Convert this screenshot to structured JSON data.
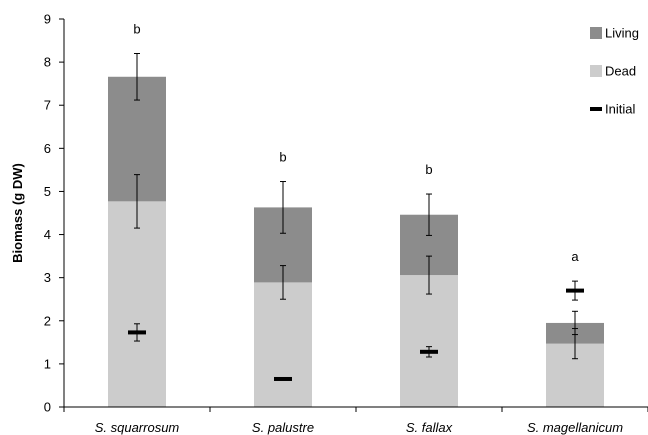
{
  "chart_data": {
    "type": "bar",
    "stacked": true,
    "ylabel": "Biomass (g DW)",
    "ylim": [
      0,
      9
    ],
    "yticks": [
      0,
      1,
      2,
      3,
      4,
      5,
      6,
      7,
      8,
      9
    ],
    "categories": [
      "S. squarrosum",
      "S. palustre",
      "S. fallax",
      "S. magellanicum"
    ],
    "series": [
      {
        "name": "Dead",
        "color": "#cccccc",
        "values": [
          4.77,
          2.89,
          3.06,
          1.47
        ],
        "errors": [
          0.62,
          0.39,
          0.44,
          0.35
        ]
      },
      {
        "name": "Living",
        "color": "#8c8c8c",
        "values": [
          2.89,
          1.74,
          1.4,
          0.48
        ],
        "errors": [
          0.54,
          0.6,
          0.48,
          0.27
        ]
      }
    ],
    "initial": {
      "name": "Initial",
      "color": "#000000",
      "values": [
        1.73,
        0.65,
        1.28,
        2.7
      ],
      "errors": [
        0.2,
        0.0,
        0.12,
        0.22
      ]
    },
    "significance": [
      "b",
      "b",
      "b",
      "a"
    ],
    "legend": {
      "position": "top-right",
      "entries": [
        "Living",
        "Dead",
        "Initial"
      ]
    },
    "grid": false
  }
}
